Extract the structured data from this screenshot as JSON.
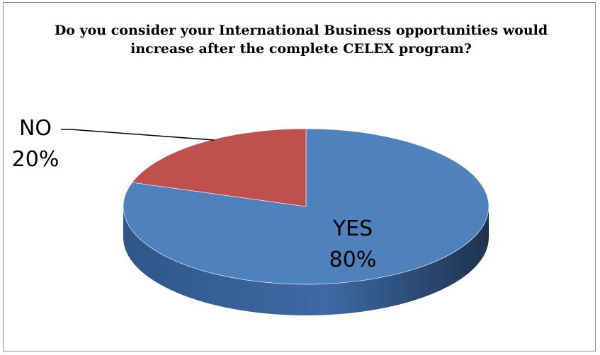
{
  "chart_data": {
    "type": "pie",
    "title": "Do you consider your International Business opportunities would increase after the complete CELEX program?",
    "slices": [
      {
        "label": "YES",
        "value": 80,
        "percent_label": "80%",
        "color": "#4F81BD"
      },
      {
        "label": "NO",
        "value": 20,
        "percent_label": "20%",
        "color": "#C0504D"
      }
    ],
    "style": "3d",
    "legend": "none",
    "data_labels": "category-and-percent"
  }
}
